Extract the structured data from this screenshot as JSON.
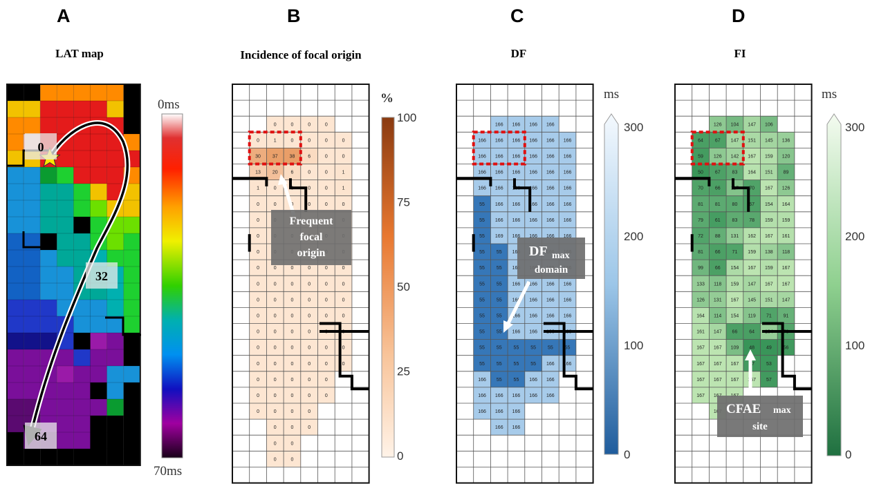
{
  "panels": {
    "A": {
      "letter": "A",
      "title": "LAT map"
    },
    "B": {
      "letter": "B",
      "title": "Incidence  of focal origin"
    },
    "C": {
      "letter": "C",
      "title": "DF"
    },
    "D": {
      "letter": "D",
      "title": "FI"
    }
  },
  "latmap": {
    "scale_top": "0ms",
    "scale_bottom": "70ms",
    "markers": [
      "0",
      "32",
      "64"
    ]
  },
  "incidence": {
    "unit": "%",
    "ticks": [
      "100",
      "75",
      "50",
      "25",
      "0"
    ],
    "callout": [
      "Frequent",
      "focal",
      "origin"
    ],
    "rows": [
      {
        "row": 2,
        "col": 2,
        "values": [
          "0",
          "0",
          "0",
          "0"
        ]
      },
      {
        "row": 3,
        "col": 1,
        "values": [
          "0",
          "1",
          "0",
          "0",
          "0",
          "0"
        ]
      },
      {
        "row": 4,
        "col": 1,
        "values": [
          "30",
          "37",
          "38",
          "6",
          "0",
          "0"
        ]
      },
      {
        "row": 5,
        "col": 1,
        "values": [
          "13",
          "20",
          "6",
          "0",
          "0",
          "1"
        ]
      },
      {
        "row": 6,
        "col": 1,
        "values": [
          "1",
          "0",
          "0",
          "0",
          "0",
          "1"
        ]
      },
      {
        "row": 7,
        "col": 1,
        "values": [
          "0",
          "0",
          "0",
          "0",
          "0",
          "0"
        ]
      },
      {
        "row": 8,
        "col": 1,
        "values": [
          "0",
          "0",
          "0",
          "0",
          "0",
          "0"
        ]
      },
      {
        "row": 9,
        "col": 1,
        "values": [
          "0",
          "0",
          "0",
          "0",
          "0",
          "0"
        ]
      },
      {
        "row": 10,
        "col": 1,
        "values": [
          "0",
          "0",
          "0",
          "0",
          "0",
          "0"
        ]
      },
      {
        "row": 11,
        "col": 1,
        "values": [
          "0",
          "0",
          "0",
          "0",
          "0",
          "0"
        ]
      },
      {
        "row": 12,
        "col": 1,
        "values": [
          "0",
          "0",
          "0",
          "0",
          "0",
          "0"
        ]
      },
      {
        "row": 13,
        "col": 1,
        "values": [
          "0",
          "0",
          "0",
          "0",
          "0",
          "0"
        ]
      },
      {
        "row": 14,
        "col": 1,
        "values": [
          "0",
          "0",
          "0",
          "0",
          "0",
          "0"
        ]
      },
      {
        "row": 15,
        "col": 1,
        "values": [
          "0",
          "0",
          "0",
          "0",
          "0",
          "0"
        ]
      },
      {
        "row": 16,
        "col": 1,
        "values": [
          "0",
          "0",
          "0",
          "0",
          "0",
          "0"
        ]
      },
      {
        "row": 17,
        "col": 1,
        "values": [
          "0",
          "0",
          "0",
          "0",
          "0",
          "0"
        ]
      },
      {
        "row": 18,
        "col": 1,
        "values": [
          "0",
          "0",
          "0",
          "0",
          "0"
        ]
      },
      {
        "row": 19,
        "col": 1,
        "values": [
          "0",
          "0",
          "0",
          "0",
          "0"
        ]
      },
      {
        "row": 20,
        "col": 1,
        "values": [
          "0",
          "0",
          "0",
          "0"
        ]
      },
      {
        "row": 21,
        "col": 2,
        "values": [
          "0",
          "0",
          "0"
        ]
      },
      {
        "row": 22,
        "col": 2,
        "values": [
          "0",
          "0"
        ]
      },
      {
        "row": 23,
        "col": 2,
        "values": [
          "0",
          "0"
        ]
      }
    ]
  },
  "df": {
    "unit": "ms",
    "ticks": [
      "300",
      "200",
      "100",
      "0"
    ],
    "callout": [
      "DF",
      "max",
      "domain"
    ],
    "rows": [
      {
        "row": 2,
        "col": 2,
        "values": [
          "166",
          "166",
          "166",
          "166"
        ]
      },
      {
        "row": 3,
        "col": 1,
        "values": [
          "166",
          "166",
          "166",
          "166",
          "166",
          "166"
        ]
      },
      {
        "row": 4,
        "col": 1,
        "values": [
          "166",
          "166",
          "166",
          "166",
          "166",
          "166"
        ]
      },
      {
        "row": 5,
        "col": 1,
        "values": [
          "166",
          "166",
          "166",
          "166",
          "166",
          "166"
        ]
      },
      {
        "row": 6,
        "col": 1,
        "values": [
          "166",
          "166",
          "166",
          "166",
          "166",
          "166"
        ]
      },
      {
        "row": 7,
        "col": 1,
        "values": [
          "55",
          "166",
          "166",
          "166",
          "166",
          "166"
        ]
      },
      {
        "row": 8,
        "col": 1,
        "values": [
          "55",
          "166",
          "166",
          "166",
          "166",
          "166"
        ]
      },
      {
        "row": 9,
        "col": 1,
        "values": [
          "55",
          "169",
          "166",
          "166",
          "166",
          "166"
        ]
      },
      {
        "row": 10,
        "col": 1,
        "values": [
          "55",
          "55",
          "166",
          "166",
          "166",
          "166"
        ]
      },
      {
        "row": 11,
        "col": 1,
        "values": [
          "55",
          "55",
          "166",
          "166",
          "166",
          "166"
        ]
      },
      {
        "row": 12,
        "col": 1,
        "values": [
          "55",
          "55",
          "166",
          "166",
          "166",
          "166"
        ]
      },
      {
        "row": 13,
        "col": 1,
        "values": [
          "55",
          "55",
          "166",
          "166",
          "166",
          "166"
        ]
      },
      {
        "row": 14,
        "col": 1,
        "values": [
          "55",
          "55",
          "166",
          "166",
          "166",
          "166"
        ]
      },
      {
        "row": 15,
        "col": 1,
        "values": [
          "55",
          "55",
          "166",
          "166",
          "166",
          "166"
        ]
      },
      {
        "row": 16,
        "col": 1,
        "values": [
          "55",
          "55",
          "55",
          "55",
          "55",
          "55"
        ]
      },
      {
        "row": 17,
        "col": 1,
        "values": [
          "55",
          "55",
          "55",
          "55",
          "166",
          "166"
        ]
      },
      {
        "row": 18,
        "col": 1,
        "values": [
          "166",
          "55",
          "55",
          "166",
          "166"
        ]
      },
      {
        "row": 19,
        "col": 1,
        "values": [
          "166",
          "166",
          "166",
          "166",
          "166"
        ]
      },
      {
        "row": 20,
        "col": 1,
        "values": [
          "166",
          "166",
          "166"
        ]
      },
      {
        "row": 21,
        "col": 2,
        "values": [
          "166",
          "166"
        ]
      }
    ]
  },
  "fi": {
    "unit": "ms",
    "ticks": [
      "300",
      "200",
      "100",
      "0"
    ],
    "callout": [
      "CFAE",
      "max",
      "site"
    ],
    "rows": [
      {
        "row": 2,
        "col": 2,
        "values": [
          "126",
          "104",
          "147",
          "106"
        ]
      },
      {
        "row": 3,
        "col": 1,
        "values": [
          "64",
          "67",
          "147",
          "151",
          "145",
          "136"
        ]
      },
      {
        "row": 4,
        "col": 1,
        "values": [
          "59",
          "126",
          "142",
          "167",
          "159",
          "120"
        ]
      },
      {
        "row": 5,
        "col": 1,
        "values": [
          "50",
          "67",
          "83",
          "164",
          "151",
          "89"
        ]
      },
      {
        "row": 6,
        "col": 1,
        "values": [
          "70",
          "66",
          "117",
          "70",
          "167",
          "126"
        ]
      },
      {
        "row": 7,
        "col": 1,
        "values": [
          "81",
          "81",
          "80",
          "67",
          "154",
          "164"
        ]
      },
      {
        "row": 8,
        "col": 1,
        "values": [
          "79",
          "61",
          "83",
          "78",
          "159",
          "159"
        ]
      },
      {
        "row": 9,
        "col": 1,
        "values": [
          "72",
          "88",
          "131",
          "162",
          "167",
          "161"
        ]
      },
      {
        "row": 10,
        "col": 1,
        "values": [
          "81",
          "66",
          "71",
          "159",
          "138",
          "118"
        ]
      },
      {
        "row": 11,
        "col": 1,
        "values": [
          "99",
          "66",
          "154",
          "167",
          "159",
          "167"
        ]
      },
      {
        "row": 12,
        "col": 1,
        "values": [
          "133",
          "118",
          "159",
          "147",
          "167",
          "167"
        ]
      },
      {
        "row": 13,
        "col": 1,
        "values": [
          "126",
          "131",
          "167",
          "145",
          "151",
          "147"
        ]
      },
      {
        "row": 14,
        "col": 1,
        "values": [
          "164",
          "114",
          "154",
          "119",
          "71",
          "91"
        ]
      },
      {
        "row": 15,
        "col": 1,
        "values": [
          "161",
          "147",
          "66",
          "64",
          "134",
          "73"
        ]
      },
      {
        "row": 16,
        "col": 1,
        "values": [
          "167",
          "167",
          "109",
          "48",
          "49",
          "56"
        ]
      },
      {
        "row": 17,
        "col": 1,
        "values": [
          "167",
          "167",
          "167",
          "57",
          "53"
        ]
      },
      {
        "row": 18,
        "col": 1,
        "values": [
          "167",
          "167",
          "167",
          "167",
          "57"
        ]
      },
      {
        "row": 19,
        "col": 1,
        "values": [
          "167",
          "167",
          "167"
        ]
      },
      {
        "row": 20,
        "col": 2,
        "values": [
          "167"
        ]
      }
    ]
  },
  "colors": {
    "incidence_low": "#fde6d2",
    "incidence_high": "#8a3a10",
    "df_low": "#2a6db0",
    "df_high": "#eaf3fb",
    "fi_low": "#2a7f48",
    "fi_high": "#f3faef",
    "focal_box": "#e01010",
    "callout_bg": "#6e6e6e"
  }
}
